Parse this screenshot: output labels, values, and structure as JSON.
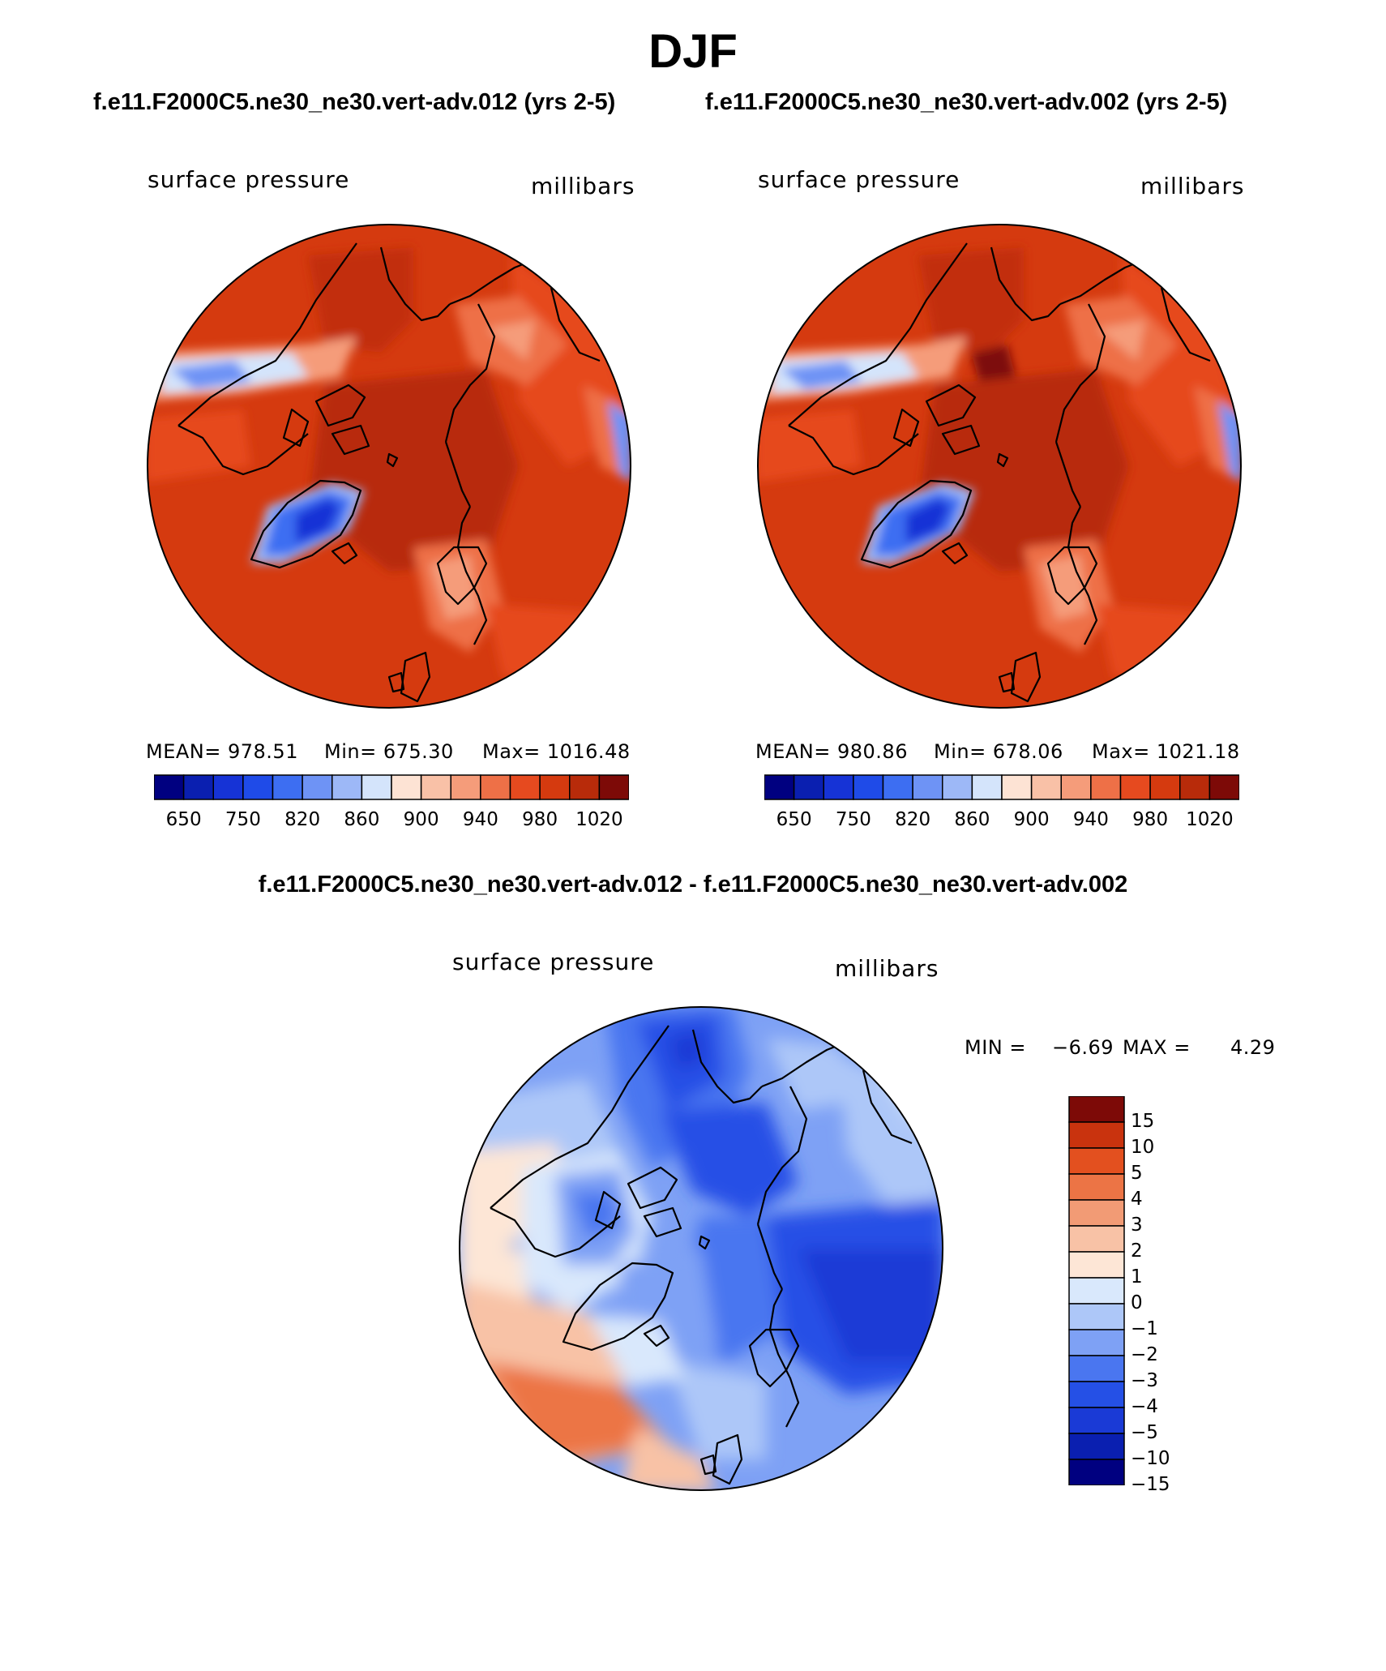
{
  "figure": {
    "title": "DJF",
    "case1_title": "f.e11.F2000C5.ne30_ne30.vert-adv.012 (yrs 2-5)",
    "case2_title": "f.e11.F2000C5.ne30_ne30.vert-adv.002 (yrs 2-5)",
    "diff_title": "f.e11.F2000C5.ne30_ne30.vert-adv.012 - f.e11.F2000C5.ne30_ne30.vert-adv.002"
  },
  "colors": {
    "abs_scale": [
      "#000080",
      "#0a1fb0",
      "#1633d6",
      "#1f4be8",
      "#3d6ef2",
      "#6e93f5",
      "#9db8f7",
      "#d4e4fb",
      "#fde3d4",
      "#f9c1a7",
      "#f59c7a",
      "#ee7047",
      "#e64a1f",
      "#d53a0f",
      "#b82b0a",
      "#7d0a07"
    ],
    "diff_scale": [
      "#000080",
      "#0a1fb0",
      "#1a3ad6",
      "#2550e6",
      "#4a76f0",
      "#7ea1f5",
      "#adc7f8",
      "#d9e8fc",
      "#fde6d6",
      "#f8c2a6",
      "#f29b75",
      "#ec7445",
      "#e3501f",
      "#c9330e",
      "#7d0a07"
    ]
  },
  "chart_data": [
    {
      "type": "heatmap",
      "title": "f.e11.F2000C5.ne30_ne30.vert-adv.012 (yrs 2-5)",
      "variable": "surface pressure",
      "units": "millibars",
      "projection": "north polar stereographic",
      "stats": {
        "mean": "MEAN= 978.51",
        "min": "Min= 675.30",
        "max": "Max= 1016.48"
      },
      "colorbar_ticks": [
        "650",
        "750",
        "820",
        "860",
        "900",
        "940",
        "980",
        "1020"
      ],
      "colorbar_levels": [
        650,
        700,
        750,
        800,
        820,
        840,
        860,
        880,
        900,
        920,
        940,
        960,
        980,
        1000,
        1020
      ]
    },
    {
      "type": "heatmap",
      "title": "f.e11.F2000C5.ne30_ne30.vert-adv.002 (yrs 2-5)",
      "variable": "surface pressure",
      "units": "millibars",
      "projection": "north polar stereographic",
      "stats": {
        "mean": "MEAN= 980.86",
        "min": "Min= 678.06",
        "max": "Max= 1021.18"
      },
      "colorbar_ticks": [
        "650",
        "750",
        "820",
        "860",
        "900",
        "940",
        "980",
        "1020"
      ],
      "colorbar_levels": [
        650,
        700,
        750,
        800,
        820,
        840,
        860,
        880,
        900,
        920,
        940,
        960,
        980,
        1000,
        1020
      ]
    },
    {
      "type": "heatmap",
      "title": "f.e11.F2000C5.ne30_ne30.vert-adv.012 - f.e11.F2000C5.ne30_ne30.vert-adv.002",
      "variable": "surface pressure",
      "units": "millibars",
      "projection": "north polar stereographic",
      "stats": {
        "min_label": "MIN =",
        "min_value": "−6.69",
        "max_label": "MAX =",
        "max_value": "4.29"
      },
      "colorbar_ticks": [
        "15",
        "10",
        "5",
        "4",
        "3",
        "2",
        "1",
        "0",
        "−1",
        "−2",
        "−3",
        "−4",
        "−5",
        "−10",
        "−15"
      ],
      "colorbar_levels": [
        15,
        10,
        5,
        4,
        3,
        2,
        1,
        0,
        -1,
        -2,
        -3,
        -4,
        -5,
        -10,
        -15
      ]
    }
  ]
}
